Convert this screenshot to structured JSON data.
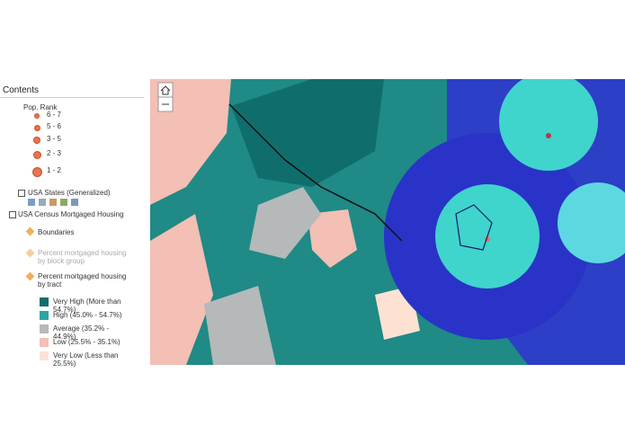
{
  "panel": {
    "title": "Contents",
    "pop_rank": {
      "title": "Pop. Rank",
      "classes": [
        "6 - 7",
        "5 - 6",
        "3 - 5",
        "2 - 3",
        "1 - 2"
      ]
    },
    "layers": {
      "states": "USA States (Generalized)",
      "census": "USA Census Mortgaged Housing",
      "boundaries": "Boundaries",
      "block_group": "Percent mortgaged housing by block group",
      "tract": "Percent mortgaged housing by tract"
    },
    "legend": [
      {
        "label": "Very High (More than 54.7%)",
        "color": "#0f6e6c"
      },
      {
        "label": "High (45.0% - 54.7%)",
        "color": "#2aa6a2"
      },
      {
        "label": "Average (35.2% - 44.9%)",
        "color": "#b5b9b9"
      },
      {
        "label": "Low (25.5% - 35.1%)",
        "color": "#f4bfb4"
      },
      {
        "label": "Very Low (Less than 25.5%)",
        "color": "#fde2d4"
      }
    ]
  }
}
